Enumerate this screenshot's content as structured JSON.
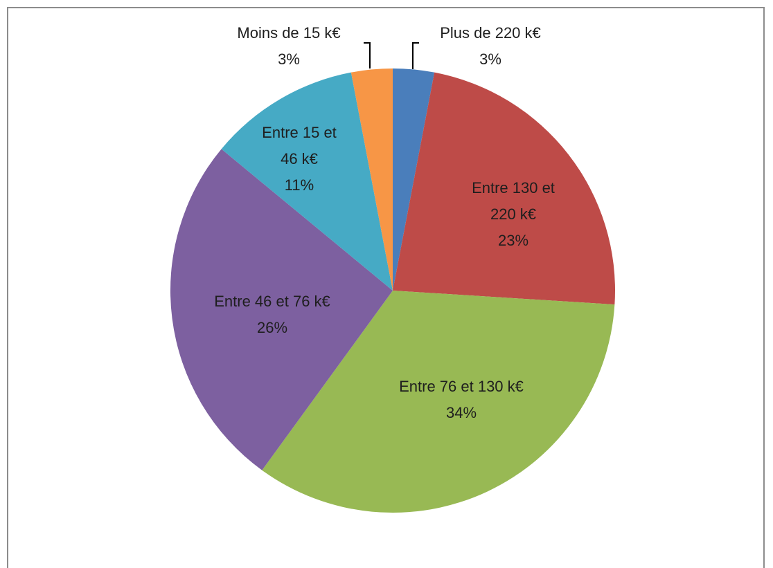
{
  "chart_data": {
    "type": "pie",
    "categories": [
      "Plus de 220 k€",
      "Entre 130 et 220 k€",
      "Entre 76 et 130 k€",
      "Entre 46 et 76 k€",
      "Entre 15 et 46 k€",
      "Moins de 15 k€"
    ],
    "values": [
      3,
      23,
      34,
      26,
      11,
      3
    ],
    "value_labels": [
      "3%",
      "23%",
      "34%",
      "26%",
      "11%",
      "3%"
    ],
    "colors": [
      "#4a7ebb",
      "#be4b48",
      "#98b954",
      "#7d60a0",
      "#46aac5",
      "#f79646"
    ]
  }
}
